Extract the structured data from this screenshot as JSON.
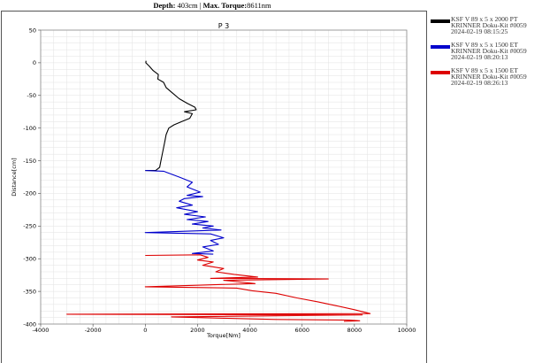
{
  "header": {
    "depth_label": "Depth:",
    "depth_value": "403cm",
    "separator": " | ",
    "torque_label": "Max. Torque:",
    "torque_value": "8611nm"
  },
  "legend": [
    {
      "line1": "KSF V 89 x 5 x 2000 PT",
      "line2": "KRINNER Doku-Kit #0059",
      "line3": "2024-02-19 08:15:25",
      "color": "#000000"
    },
    {
      "line1": "KSF V 89 x 5 x 1500 ET",
      "line2": "KRINNER Doku-Kit #0059",
      "line3": "2024-02-19 08:20:13",
      "color": "#0000cc"
    },
    {
      "line1": "KSF V 89 x 5 x 1500 ET",
      "line2": "KRINNER Doku-Kit #0059",
      "line3": "2024-02-19 08:26:13",
      "color": "#dd0000"
    }
  ],
  "chart_data": {
    "type": "line",
    "title": "P 3",
    "xlabel": "Torque[Nm]",
    "ylabel": "Distance[cm]",
    "xlim": [
      -4000,
      10000
    ],
    "ylim": [
      -400,
      50
    ],
    "xticks": [
      -4000,
      -2000,
      0,
      2000,
      4000,
      6000,
      8000,
      10000
    ],
    "yticks": [
      50,
      0,
      -50,
      -100,
      -150,
      -200,
      -250,
      -300,
      -350,
      -400
    ],
    "grid": true,
    "series": [
      {
        "name": "KSF V 89 x 5 x 2000 PT",
        "color": "#000000",
        "points": [
          [
            30,
            3
          ],
          [
            20,
            0
          ],
          [
            150,
            -5
          ],
          [
            300,
            -12
          ],
          [
            500,
            -18
          ],
          [
            480,
            -25
          ],
          [
            700,
            -30
          ],
          [
            800,
            -38
          ],
          [
            1000,
            -45
          ],
          [
            1300,
            -55
          ],
          [
            1600,
            -62
          ],
          [
            1900,
            -68
          ],
          [
            1950,
            -72
          ],
          [
            1500,
            -75
          ],
          [
            1800,
            -78
          ],
          [
            1700,
            -85
          ],
          [
            1400,
            -90
          ],
          [
            1100,
            -95
          ],
          [
            900,
            -100
          ],
          [
            800,
            -110
          ],
          [
            750,
            -120
          ],
          [
            700,
            -130
          ],
          [
            650,
            -140
          ],
          [
            600,
            -150
          ],
          [
            550,
            -160
          ],
          [
            400,
            -165
          ],
          [
            0,
            -165
          ]
        ]
      },
      {
        "name": "KSF V 89 x 5 x 1500 ET",
        "color": "#0000cc",
        "points": [
          [
            0,
            -165
          ],
          [
            700,
            -166
          ],
          [
            1300,
            -175
          ],
          [
            1800,
            -183
          ],
          [
            1600,
            -190
          ],
          [
            2100,
            -198
          ],
          [
            1600,
            -203
          ],
          [
            2200,
            -205
          ],
          [
            1500,
            -208
          ],
          [
            1300,
            -212
          ],
          [
            1800,
            -218
          ],
          [
            1200,
            -222
          ],
          [
            2000,
            -228
          ],
          [
            1500,
            -232
          ],
          [
            2300,
            -236
          ],
          [
            1600,
            -240
          ],
          [
            2400,
            -243
          ],
          [
            1800,
            -247
          ],
          [
            2600,
            -250
          ],
          [
            2200,
            -253
          ],
          [
            2900,
            -256
          ],
          [
            0,
            -260
          ],
          [
            2500,
            -262
          ],
          [
            3000,
            -268
          ],
          [
            2500,
            -272
          ],
          [
            2800,
            -278
          ],
          [
            2200,
            -282
          ],
          [
            2600,
            -288
          ],
          [
            1800,
            -292
          ],
          [
            2600,
            -293
          ]
        ]
      },
      {
        "name": "KSF V 89 x 5 x 1500 ET",
        "color": "#dd0000",
        "points": [
          [
            0,
            -295
          ],
          [
            2100,
            -294
          ],
          [
            2400,
            -298
          ],
          [
            2000,
            -302
          ],
          [
            2600,
            -305
          ],
          [
            2200,
            -310
          ],
          [
            3000,
            -315
          ],
          [
            2700,
            -320
          ],
          [
            3400,
            -324
          ],
          [
            4300,
            -328
          ],
          [
            2500,
            -330
          ],
          [
            7000,
            -331
          ],
          [
            3000,
            -333
          ],
          [
            4200,
            -338
          ],
          [
            2500,
            -340
          ],
          [
            0,
            -343
          ],
          [
            3500,
            -345
          ],
          [
            4100,
            -349
          ],
          [
            5000,
            -353
          ],
          [
            5800,
            -360
          ],
          [
            6600,
            -366
          ],
          [
            7300,
            -372
          ],
          [
            8000,
            -378
          ],
          [
            8600,
            -384
          ],
          [
            -3000,
            -385
          ],
          [
            8300,
            -386
          ],
          [
            1000,
            -389
          ],
          [
            3000,
            -391
          ],
          [
            5000,
            -393
          ],
          [
            7800,
            -394
          ],
          [
            8200,
            -395
          ],
          [
            7600,
            -396
          ]
        ]
      }
    ]
  }
}
